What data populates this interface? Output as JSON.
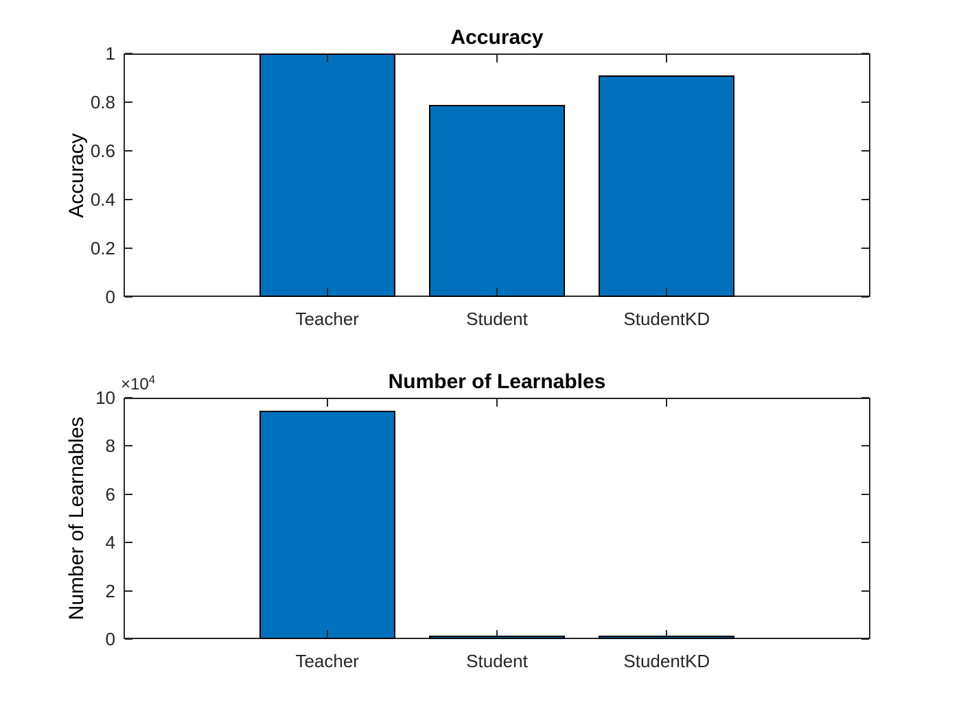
{
  "figure": {
    "background_color": "#ffffff",
    "axis_color": "#262626",
    "bar_fill_color": "#0072BD",
    "bar_edge_color": "#000000",
    "text_color": "#000000"
  },
  "chart_data": [
    {
      "type": "bar",
      "title": "Accuracy",
      "xlabel": "",
      "ylabel": "Accuracy",
      "categories": [
        "Teacher",
        "Student",
        "StudentKD"
      ],
      "values": [
        1.0,
        0.79,
        0.91
      ],
      "x": [
        1,
        2,
        3
      ],
      "xlim": [
        -0.2,
        4.2
      ],
      "ylim": [
        0,
        1
      ],
      "yticks": [
        0,
        0.2,
        0.4,
        0.6,
        0.8,
        1
      ],
      "ytick_labels": [
        "0",
        "0.2",
        "0.4",
        "0.6",
        "0.8",
        "1"
      ],
      "bar_width": 0.8,
      "bar_color": "#0072BD",
      "grid": false,
      "legend": "none",
      "box": true
    },
    {
      "type": "bar",
      "title": "Number of Learnables",
      "xlabel": "",
      "ylabel": "Number of Learnables",
      "categories": [
        "Teacher",
        "Student",
        "StudentKD"
      ],
      "values": [
        94500,
        1300,
        1300
      ],
      "x": [
        1,
        2,
        3
      ],
      "xlim": [
        -0.2,
        4.2
      ],
      "ylim": [
        0,
        100000
      ],
      "yticks": [
        0,
        20000,
        40000,
        60000,
        80000,
        100000
      ],
      "ytick_labels": [
        "0",
        "2",
        "4",
        "6",
        "8",
        "10"
      ],
      "offset_base": "×10",
      "offset_exponent": "4",
      "bar_width": 0.8,
      "bar_color": "#0072BD",
      "grid": false,
      "legend": "none",
      "box": true
    }
  ]
}
